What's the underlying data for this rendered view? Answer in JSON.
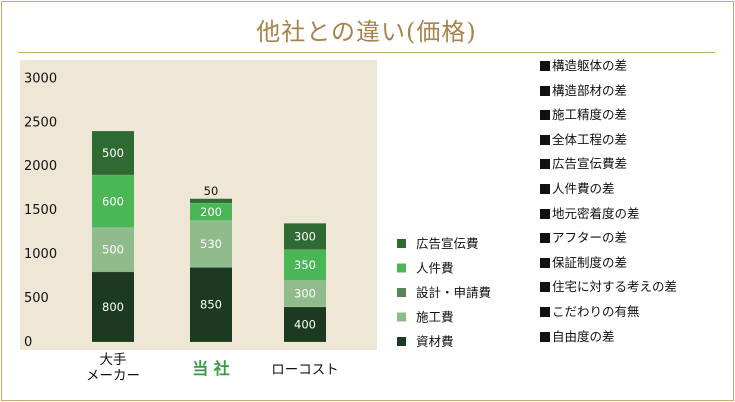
{
  "title": "他社との違い(価格)",
  "chart_data": {
    "type": "bar",
    "stacked": true,
    "categories": [
      "大手\nメーカー",
      "当 社",
      "ローコスト"
    ],
    "highlight_category": "当 社",
    "y_ticks": [
      0,
      500,
      1000,
      1500,
      2000,
      2500,
      3000
    ],
    "ylim": [
      0,
      3300
    ],
    "grid": false,
    "legend_position": "right",
    "series": [
      {
        "name": "資材費",
        "values": [
          800,
          850,
          400
        ],
        "color": "#1b3a1f"
      },
      {
        "name": "施工費",
        "values": [
          500,
          530,
          300
        ],
        "color": "#90bc8d"
      },
      {
        "name": "設計・申請費",
        "values": [
          0,
          0,
          0
        ],
        "color": "#58865a"
      },
      {
        "name": "人件費",
        "values": [
          600,
          200,
          350
        ],
        "color": "#4ab655"
      },
      {
        "name": "広告宣伝費",
        "values": [
          500,
          50,
          300
        ],
        "color": "#2f6a33"
      }
    ],
    "legend_order": [
      "広告宣伝費",
      "人件費",
      "設計・申請費",
      "施工費",
      "資材費"
    ],
    "colors": {
      "plot_bg": "#efe7d6",
      "highlight_label": "#3a9a46",
      "title": "#a7844e",
      "border": "#c8ab72"
    }
  },
  "notes": [
    "構造躯体の差",
    "構造部材の差",
    "施工精度の差",
    "全体工程の差",
    "広告宣伝費差",
    "人件費の差",
    "地元密着度の差",
    "アフターの差",
    "保証制度の差",
    "住宅に対する考えの差",
    "こだわりの有無",
    "自由度の差"
  ]
}
